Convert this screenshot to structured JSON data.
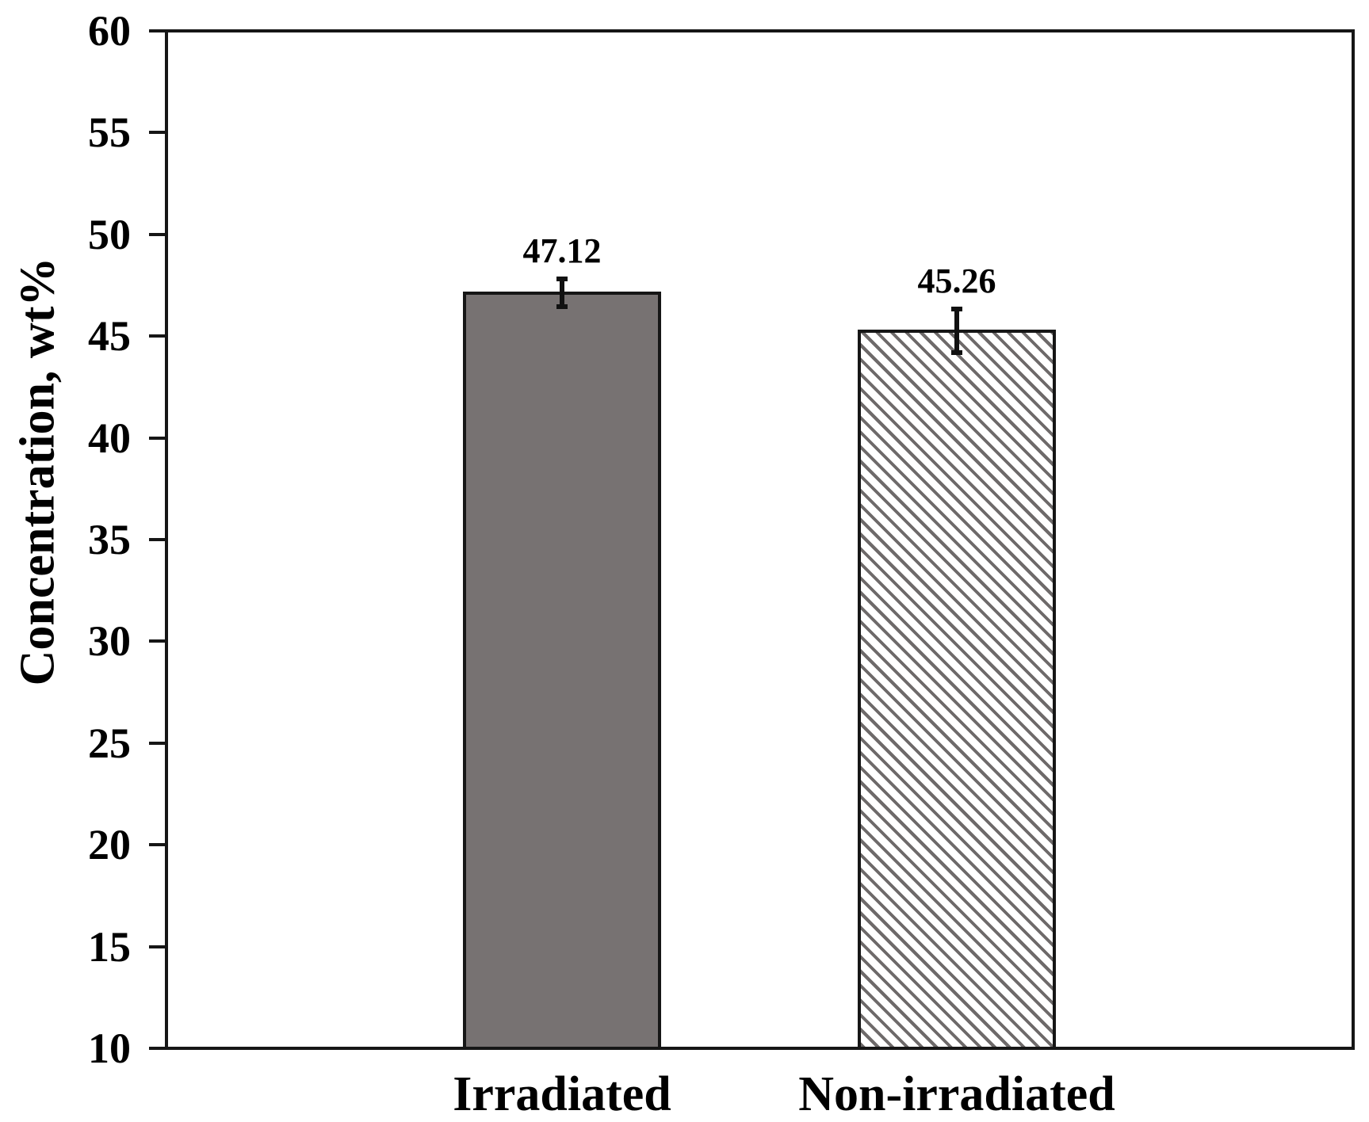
{
  "chart_data": {
    "type": "bar",
    "title": "",
    "ylabel": "Concentration, wt%",
    "xlabel": "",
    "categories": [
      "Irradiated",
      "Non-irradiated"
    ],
    "values": [
      47.12,
      45.26
    ],
    "value_labels": [
      "47.12",
      "45.26"
    ],
    "errors": [
      0.72,
      1.1
    ],
    "ylim": [
      10,
      60
    ],
    "yticks": [
      10,
      15,
      20,
      25,
      30,
      35,
      40,
      45,
      50,
      55,
      60
    ],
    "grid": false,
    "legend": "none",
    "bar_fill_styles": [
      "solid",
      "hatch-backslash"
    ],
    "colors": {
      "bar_solid": "#777272",
      "hatch_line": "#6e6a6a",
      "hatch_background": "#ffffff",
      "axis": "#161616",
      "error_bar": "#111111",
      "text": "#000000",
      "background": "#ffffff"
    }
  }
}
